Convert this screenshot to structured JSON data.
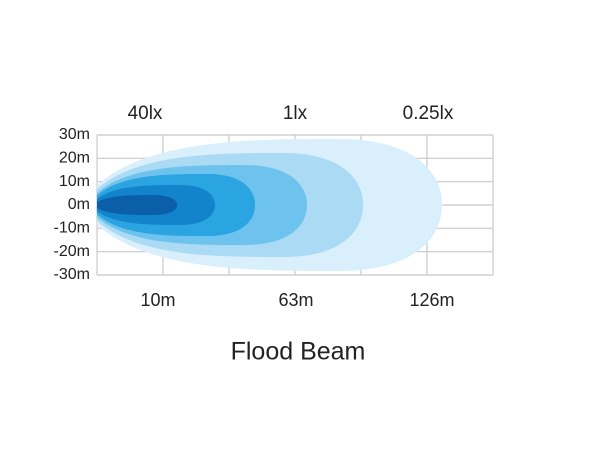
{
  "title": "Flood Beam",
  "y_labels": [
    "30m",
    "20m",
    "10m",
    "0m",
    "-10m",
    "-20m",
    "-30m"
  ],
  "top_labels": [
    "40lx",
    "1lx",
    "0.25lx"
  ],
  "bottom_labels": [
    "10m",
    "63m",
    "126m"
  ]
}
